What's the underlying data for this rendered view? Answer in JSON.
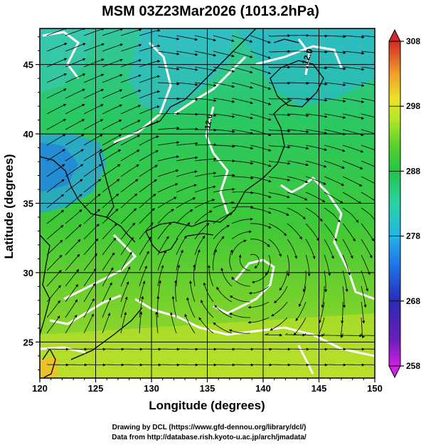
{
  "title": "MSM 03Z23Mar2026 (1013.2hPa)",
  "xlabel": "Longitude (degrees)",
  "ylabel": "Latitude  (degrees)",
  "credits": [
    "Drawing by DCL (https://www.gfd-dennou.org/library/dcl/)",
    "Data from http://database.rish.kyoto-u.ac.jp/arch/jmadata/"
  ],
  "colors": {
    "frame": "#000000",
    "contour": "#ffffff",
    "streamline": "#000000",
    "coast": "#000000"
  },
  "chart_data": {
    "type": "heatmap",
    "title": "MSM 03Z23Mar2026 (1013.2hPa)",
    "xlabel": "Longitude (degrees)",
    "ylabel": "Latitude  (degrees)",
    "xlim": [
      120,
      150
    ],
    "ylim": [
      22.4,
      47.6
    ],
    "xticks": [
      120,
      125,
      130,
      135,
      140,
      145,
      150
    ],
    "yticks": [
      25,
      30,
      35,
      40,
      45
    ],
    "grid": true,
    "colorbar": {
      "ticks": [
        258,
        268,
        278,
        288,
        298,
        308
      ],
      "range": [
        258,
        308
      ],
      "palette": [
        "#d21ee6",
        "#2a2ab8",
        "#1e6ee6",
        "#23b4e6",
        "#2ad2a6",
        "#23c44a",
        "#5ad228",
        "#b4e626",
        "#ebe228",
        "#f0a028",
        "#e65028",
        "#d22828"
      ]
    },
    "contour_labels": [
      "12.0",
      "12.0"
    ]
  }
}
